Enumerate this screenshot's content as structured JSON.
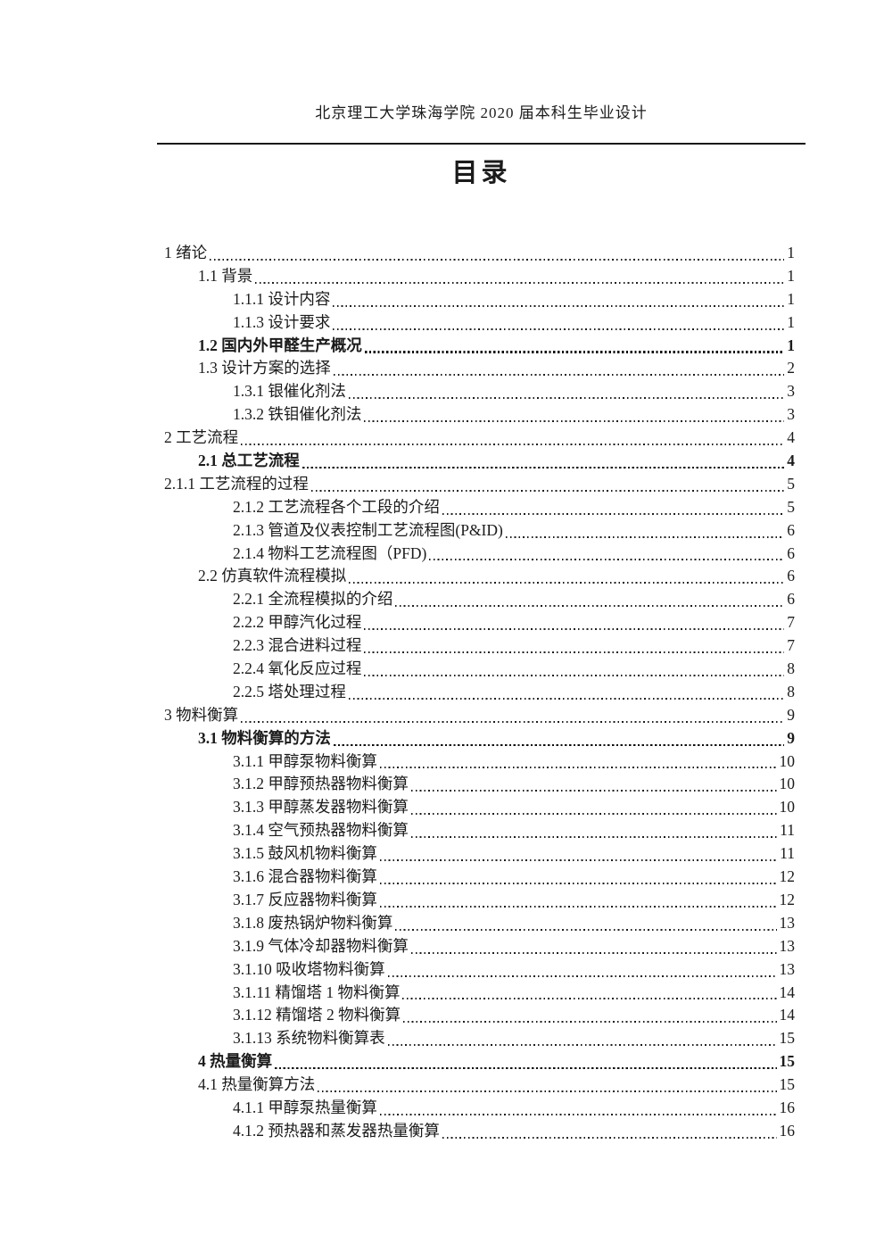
{
  "colors": {
    "text": "#1b1b1b",
    "background": "#ffffff"
  },
  "document": {
    "header": "北京理工大学珠海学院 2020 届本科生毕业设计",
    "title": "目录"
  },
  "toc": {
    "entries": [
      {
        "label": "1 绪论",
        "page": "1",
        "level": 0
      },
      {
        "label": "1.1 背景",
        "page": "1",
        "level": 1
      },
      {
        "label": "1.1.1 设计内容",
        "page": "1",
        "level": 2
      },
      {
        "label": "1.1.3 设计要求",
        "page": "1",
        "level": 2
      },
      {
        "label": "1.2 国内外甲醛生产概况",
        "page": "1",
        "level": 1,
        "bold": true
      },
      {
        "label": "1.3 设计方案的选择",
        "page": "2",
        "level": 1
      },
      {
        "label": "1.3.1 银催化剂法",
        "page": "3",
        "level": 2
      },
      {
        "label": "1.3.2 铁钼催化剂法",
        "page": "3",
        "level": 2
      },
      {
        "label": "2 工艺流程",
        "page": "4",
        "level": 0
      },
      {
        "label": "2.1 总工艺流程",
        "page": "4",
        "level": 1,
        "bold": true
      },
      {
        "label": "2.1.1 工艺流程的过程",
        "page": "5",
        "level": 0
      },
      {
        "label": "2.1.2 工艺流程各个工段的介绍",
        "page": "5",
        "level": 2
      },
      {
        "label": "2.1.3 管道及仪表控制工艺流程图(P&ID)",
        "page": "6",
        "level": 2
      },
      {
        "label": "2.1.4 物料工艺流程图（PFD)",
        "page": "6",
        "level": 2
      },
      {
        "label": "2.2 仿真软件流程模拟",
        "page": "6",
        "level": 1
      },
      {
        "label": "2.2.1 全流程模拟的介绍",
        "page": "6",
        "level": 2
      },
      {
        "label": "2.2.2 甲醇汽化过程",
        "page": "7",
        "level": 2
      },
      {
        "label": "2.2.3 混合进料过程",
        "page": "7",
        "level": 2
      },
      {
        "label": "2.2.4 氧化反应过程",
        "page": "8",
        "level": 2
      },
      {
        "label": "2.2.5 塔处理过程",
        "page": "8",
        "level": 2
      },
      {
        "label": "3 物料衡算",
        "page": "9",
        "level": 0
      },
      {
        "label": "3.1 物料衡算的方法",
        "page": "9",
        "level": 1,
        "bold": true
      },
      {
        "label": "3.1.1 甲醇泵物料衡算",
        "page": "10",
        "level": 2
      },
      {
        "label": "3.1.2 甲醇预热器物料衡算",
        "page": "10",
        "level": 2
      },
      {
        "label": "3.1.3 甲醇蒸发器物料衡算",
        "page": "10",
        "level": 2
      },
      {
        "label": "3.1.4 空气预热器物料衡算",
        "page": "11",
        "level": 2
      },
      {
        "label": "3.1.5 鼓风机物料衡算",
        "page": "11",
        "level": 2
      },
      {
        "label": "3.1.6 混合器物料衡算",
        "page": "12",
        "level": 2
      },
      {
        "label": "3.1.7 反应器物料衡算",
        "page": "12",
        "level": 2
      },
      {
        "label": "3.1.8 废热锅炉物料衡算",
        "page": "13",
        "level": 2
      },
      {
        "label": "3.1.9 气体冷却器物料衡算",
        "page": "13",
        "level": 2
      },
      {
        "label": "3.1.10 吸收塔物料衡算",
        "page": "13",
        "level": 2
      },
      {
        "label": "3.1.11 精馏塔 1 物料衡算",
        "page": "14",
        "level": 2
      },
      {
        "label": "3.1.12 精馏塔 2 物料衡算",
        "page": "14",
        "level": 2
      },
      {
        "label": "3.1.13 系统物料衡算表",
        "page": "15",
        "level": 2
      },
      {
        "label": "4 热量衡算",
        "page": "15",
        "level": 1,
        "bold": true
      },
      {
        "label": "4.1 热量衡算方法",
        "page": "15",
        "level": 1
      },
      {
        "label": "4.1.1 甲醇泵热量衡算",
        "page": "16",
        "level": 2
      },
      {
        "label": "4.1.2 预热器和蒸发器热量衡算",
        "page": "16",
        "level": 2
      }
    ]
  }
}
